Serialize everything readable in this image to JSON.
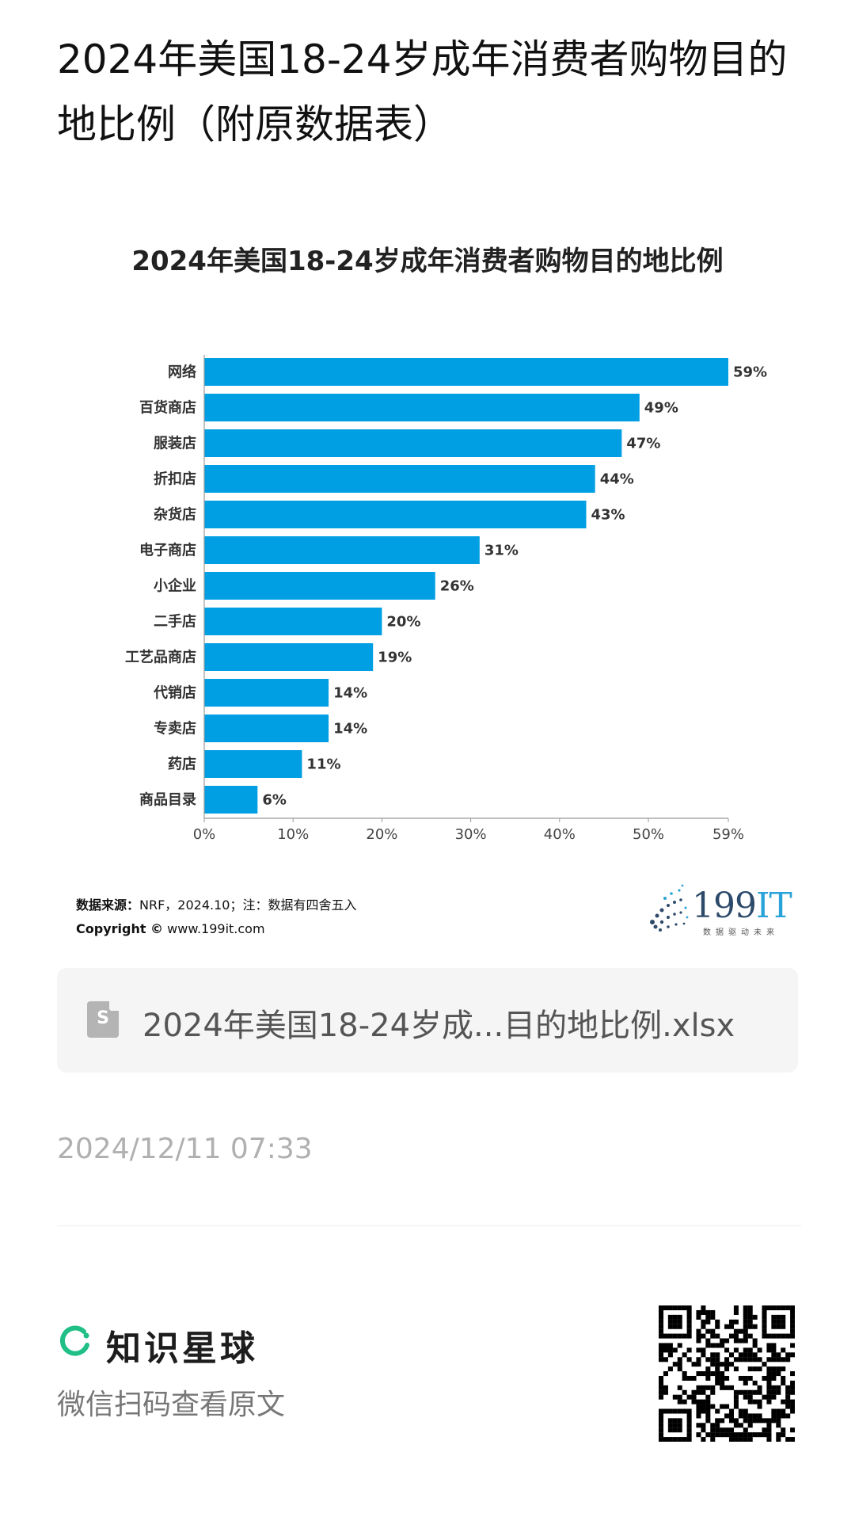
{
  "post": {
    "title": "2024年美国18-24岁成年消费者购物目的地比例（附原数据表）",
    "date": "2024/12/11 07:33"
  },
  "chart_data": {
    "type": "bar",
    "orientation": "horizontal",
    "title": "2024年美国18-24岁成年消费者购物目的地比例",
    "categories": [
      "网络",
      "百货商店",
      "服装店",
      "折扣店",
      "杂货店",
      "电子商店",
      "小企业",
      "二手店",
      "工艺品商店",
      "代销店",
      "专卖店",
      "药店",
      "商品目录"
    ],
    "values": [
      59,
      49,
      47,
      44,
      43,
      31,
      26,
      20,
      19,
      14,
      14,
      11,
      6
    ],
    "value_labels": [
      "59%",
      "49%",
      "47%",
      "44%",
      "43%",
      "31%",
      "26%",
      "20%",
      "19%",
      "14%",
      "14%",
      "11%",
      "6%"
    ],
    "x_ticks": [
      "0%",
      "10%",
      "20%",
      "30%",
      "40%",
      "50%",
      "59%"
    ],
    "x_tick_values": [
      0,
      10,
      20,
      30,
      40,
      50,
      59
    ],
    "xlim": [
      0,
      59
    ],
    "bar_color": "#009fe3",
    "grid": false
  },
  "source": {
    "label": "数据来源：",
    "text": "NRF，2024.10；注：数据有四舍五入",
    "copyright_label": "Copyright ©",
    "copyright_site": "www.199it.com"
  },
  "logo": {
    "main": "199",
    "accent": "IT",
    "sub": "数据驱动未来"
  },
  "attachment": {
    "icon": "spreadsheet-file-icon",
    "icon_glyph": "S",
    "name": "2024年美国18-24岁成...目的地比例.xlsx"
  },
  "footer": {
    "brand": "知识星球",
    "scan_hint": "微信扫码查看原文",
    "brand_color": "#1fbf86"
  }
}
